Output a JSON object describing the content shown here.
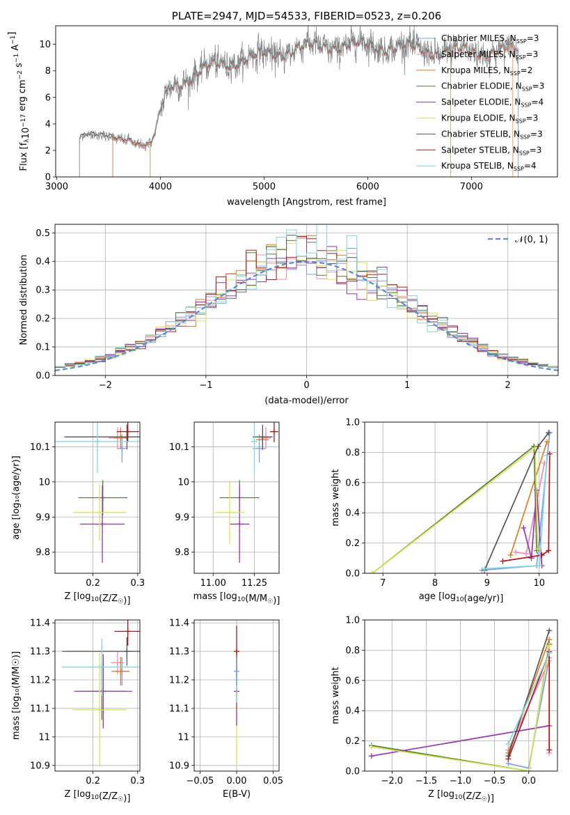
{
  "colors": {
    "chabrier_miles": "#7b9ee8",
    "salpeter_miles": "#f08ab0",
    "kroupa_miles": "#e07b22",
    "chabrier_elodie": "#4f7a44",
    "salpeter_elodie": "#9b30b0",
    "kroupa_elodie": "#d6e84c",
    "chabrier_stelib": "#555555",
    "salpeter_stelib": "#b01616",
    "kroupa_stelib": "#7fd6e0",
    "data_spectrum": "#808080",
    "normal_curve": "#5b8bd6"
  },
  "chart_data": [
    {
      "panel": "spectrum",
      "type": "line",
      "title": "PLATE=2947, MJD=54533, FIBERID=0523, z=0.206",
      "xlabel": "wavelength [Angstrom, rest frame]",
      "ylabel_parts": [
        "Flux [f",
        "λ",
        "10",
        "−17",
        " erg cm",
        "−2",
        " s",
        "−1",
        " A",
        "−1",
        "]"
      ],
      "xlim": [
        2990,
        7830
      ],
      "ylim": [
        0,
        11.4
      ],
      "xticks": [
        3000,
        4000,
        5000,
        6000,
        7000
      ],
      "yticks": [
        0,
        2,
        4,
        6,
        8,
        10
      ],
      "grid": false,
      "legend_position": "right",
      "legend": [
        {
          "label": "Chabrier MILES, N",
          "sub": "SSP",
          "suffix": "=3",
          "color_key": "chabrier_miles"
        },
        {
          "label": "Salpeter MILES, N",
          "sub": "SSP",
          "suffix": "=3",
          "color_key": "salpeter_miles"
        },
        {
          "label": "Kroupa MILES, N",
          "sub": "SSP",
          "suffix": "=2",
          "color_key": "kroupa_miles"
        },
        {
          "label": "Chabrier ELODIE, N",
          "sub": "SSP",
          "suffix": "=3",
          "color_key": "chabrier_elodie"
        },
        {
          "label": "Salpeter ELODIE, N",
          "sub": "SSP",
          "suffix": "=4",
          "color_key": "salpeter_elodie"
        },
        {
          "label": "Kroupa ELODIE, N",
          "sub": "SSP",
          "suffix": "=3",
          "color_key": "kroupa_elodie"
        },
        {
          "label": "Chabrier STELIB, N",
          "sub": "SSP",
          "suffix": "=3",
          "color_key": "chabrier_stelib"
        },
        {
          "label": "Salpeter STELIB, N",
          "sub": "SSP",
          "suffix": "=3",
          "color_key": "salpeter_stelib"
        },
        {
          "label": "Kroupa STELIB, N",
          "sub": "SSP",
          "suffix": "=4",
          "color_key": "kroupa_stelib"
        }
      ],
      "continuum": [
        [
          3220,
          3.1
        ],
        [
          3300,
          3.4
        ],
        [
          3450,
          3.0
        ],
        [
          3600,
          2.8
        ],
        [
          3700,
          2.9
        ],
        [
          3800,
          2.5
        ],
        [
          3900,
          2.4
        ],
        [
          3950,
          3.3
        ],
        [
          4000,
          5.0
        ],
        [
          4100,
          6.9
        ],
        [
          4300,
          7.6
        ],
        [
          4500,
          8.3
        ],
        [
          4700,
          8.8
        ],
        [
          4900,
          9.0
        ],
        [
          5100,
          9.3
        ],
        [
          5300,
          9.7
        ],
        [
          5500,
          9.8
        ],
        [
          5700,
          10.0
        ],
        [
          5900,
          9.9
        ],
        [
          6100,
          9.9
        ],
        [
          6300,
          9.8
        ],
        [
          6500,
          9.6
        ],
        [
          6700,
          9.5
        ],
        [
          6900,
          9.4
        ],
        [
          7100,
          9.5
        ],
        [
          7300,
          9.5
        ],
        [
          7450,
          9.5
        ]
      ],
      "model_ranges": [
        {
          "color_key": "chabrier_miles",
          "x": [
            3540,
            7450
          ]
        },
        {
          "color_key": "salpeter_miles",
          "x": [
            3540,
            7450
          ]
        },
        {
          "color_key": "kroupa_miles",
          "x": [
            3540,
            7400
          ]
        },
        {
          "color_key": "chabrier_elodie",
          "x": [
            3900,
            6800
          ]
        },
        {
          "color_key": "salpeter_elodie",
          "x": [
            3900,
            6800
          ]
        },
        {
          "color_key": "kroupa_elodie",
          "x": [
            3900,
            6800
          ]
        },
        {
          "color_key": "chabrier_stelib",
          "x": [
            3220,
            7450
          ]
        },
        {
          "color_key": "salpeter_stelib",
          "x": [
            3220,
            7450
          ]
        },
        {
          "color_key": "kroupa_stelib",
          "x": [
            3220,
            7450
          ]
        }
      ]
    },
    {
      "panel": "residuals",
      "type": "line",
      "xlabel": "(data-model)/error",
      "ylabel": "Normed distribution",
      "xlim": [
        -2.5,
        2.5
      ],
      "ylim": [
        0,
        0.53
      ],
      "xticks": [
        -2,
        -1,
        0,
        1,
        2
      ],
      "xtick_labels": [
        "−2",
        "−1",
        "0",
        "1",
        "2"
      ],
      "yticks": [
        0.0,
        0.1,
        0.2,
        0.3,
        0.4,
        0.5
      ],
      "ytick_labels": [
        "0.0",
        "0.1",
        "0.2",
        "0.3",
        "0.4",
        "0.5"
      ],
      "grid": true,
      "legend_position": "top-right",
      "legend_label": "𝒩(0, 1)",
      "bin_width": 0.1,
      "bin_start": -2.5
    },
    {
      "panel": "age_vs_Z",
      "type": "scatter",
      "xlabel_prefix": "Z [log",
      "xlabel_sub": "10",
      "xlabel_suffix": "(Z/Z",
      "xlabel_sun": "☉",
      "xlabel_end": ")]",
      "ylabel": "age  [log₁₀(age/yr)]",
      "xlim": [
        0.115,
        0.305
      ],
      "ylim": [
        9.74,
        10.17
      ],
      "xticks": [
        0.2,
        0.3
      ],
      "yticks": [
        9.8,
        9.9,
        10.0,
        10.1
      ],
      "grid": true,
      "points": [
        {
          "color_key": "chabrier_miles",
          "x": 0.265,
          "y": 10.095,
          "ex": 0.012,
          "ey": 0.04
        },
        {
          "color_key": "salpeter_miles",
          "x": 0.255,
          "y": 10.125,
          "ex": 0.02,
          "ey": 0.03
        },
        {
          "color_key": "kroupa_miles",
          "x": 0.262,
          "y": 10.125,
          "ex": 0.015,
          "ey": 0.03
        },
        {
          "color_key": "chabrier_elodie",
          "x": 0.222,
          "y": 9.955,
          "ex": 0.055,
          "ey": 0.05
        },
        {
          "color_key": "salpeter_elodie",
          "x": 0.221,
          "y": 9.88,
          "ex": 0.05,
          "ey": 0.11
        },
        {
          "color_key": "kroupa_elodie",
          "x": 0.215,
          "y": 9.913,
          "ex": 0.06,
          "ey": 0.08
        },
        {
          "color_key": "chabrier_stelib",
          "x": 0.276,
          "y": 10.128,
          "ex": 0.14,
          "ey": 0.035
        },
        {
          "color_key": "salpeter_stelib",
          "x": 0.278,
          "y": 10.143,
          "ex": 0.025,
          "ey": 0.03
        },
        {
          "color_key": "kroupa_stelib",
          "x": 0.21,
          "y": 10.115,
          "ex": 0.095,
          "ey": 0.09
        }
      ]
    },
    {
      "panel": "age_vs_mass",
      "type": "scatter",
      "xlabel_prefix": "mass [log",
      "xlabel_sub": "10",
      "xlabel_suffix": "(M/M",
      "xlabel_sun": "☉",
      "xlabel_end": ")]",
      "xlim": [
        10.885,
        11.4
      ],
      "ylim": [
        9.74,
        10.17
      ],
      "xticks": [
        11.0,
        11.25
      ],
      "xtick_labels": [
        "11.00",
        "11.25"
      ],
      "yticks": [
        9.8,
        9.9,
        10.0,
        10.1
      ],
      "grid": true,
      "points": [
        {
          "color_key": "chabrier_miles",
          "x": 11.28,
          "y": 10.095,
          "ex": 0.04,
          "ey": 0.04
        },
        {
          "color_key": "salpeter_miles",
          "x": 11.32,
          "y": 10.125,
          "ex": 0.03,
          "ey": 0.03
        },
        {
          "color_key": "kroupa_miles",
          "x": 11.3,
          "y": 10.12,
          "ex": 0.04,
          "ey": 0.03
        },
        {
          "color_key": "chabrier_elodie",
          "x": 11.16,
          "y": 9.955,
          "ex": 0.12,
          "ey": 0.05
        },
        {
          "color_key": "salpeter_elodie",
          "x": 11.16,
          "y": 9.88,
          "ex": 0.06,
          "ey": 0.11
        },
        {
          "color_key": "kroupa_elodie",
          "x": 11.1,
          "y": 9.913,
          "ex": 0.09,
          "ey": 0.09
        },
        {
          "color_key": "chabrier_stelib",
          "x": 11.3,
          "y": 10.128,
          "ex": 0.06,
          "ey": 0.035
        },
        {
          "color_key": "salpeter_stelib",
          "x": 11.37,
          "y": 10.143,
          "ex": 0.025,
          "ey": 0.03
        },
        {
          "color_key": "kroupa_stelib",
          "x": 11.25,
          "y": 10.115,
          "ex": 0.02,
          "ey": 0.09
        }
      ]
    },
    {
      "panel": "weight_vs_age",
      "type": "line",
      "xlabel_prefix": "age  [log",
      "xlabel_sub": "10",
      "xlabel_suffix": "(age/yr)]",
      "ylabel": "mass weight",
      "xlim": [
        6.65,
        10.35
      ],
      "ylim": [
        0,
        1.0
      ],
      "xticks": [
        7,
        8,
        9,
        10
      ],
      "yticks": [
        0.0,
        0.2,
        0.4,
        0.6,
        0.8,
        1.0
      ],
      "ytick_labels": [
        "0.0",
        "0.2",
        "0.4",
        "0.6",
        "0.8",
        "1.0"
      ],
      "grid": true,
      "series": [
        {
          "color_key": "chabrier_miles",
          "x": [
            8.9,
            9.95,
            10.2
          ],
          "y": [
            0.02,
            0.05,
            0.93
          ]
        },
        {
          "color_key": "salpeter_miles",
          "x": [
            9.55,
            9.75,
            10.1
          ],
          "y": [
            0.14,
            0.13,
            0.73
          ]
        },
        {
          "color_key": "kroupa_miles",
          "x": [
            9.45,
            10.15
          ],
          "y": [
            0.12,
            0.87
          ]
        },
        {
          "color_key": "chabrier_elodie",
          "x": [
            6.8,
            9.9,
            9.95
          ],
          "y": [
            0.0,
            0.84,
            0.15
          ]
        },
        {
          "color_key": "salpeter_elodie",
          "x": [
            9.7,
            9.85,
            9.95,
            10.05
          ],
          "y": [
            0.3,
            0.1,
            0.55,
            0.05
          ]
        },
        {
          "color_key": "kroupa_elodie",
          "x": [
            6.8,
            9.92,
            9.97
          ],
          "y": [
            0.0,
            0.83,
            0.16
          ]
        },
        {
          "color_key": "chabrier_stelib",
          "x": [
            8.95,
            9.98,
            10.18
          ],
          "y": [
            0.02,
            0.84,
            0.93
          ]
        },
        {
          "color_key": "salpeter_stelib",
          "x": [
            9.3,
            10.05,
            10.18,
            10.2
          ],
          "y": [
            0.08,
            0.12,
            0.15,
            0.79
          ]
        },
        {
          "color_key": "kroupa_stelib",
          "x": [
            8.95,
            10.0,
            10.15
          ],
          "y": [
            0.03,
            0.05,
            0.78
          ]
        }
      ]
    },
    {
      "panel": "mass_vs_Z",
      "type": "scatter",
      "xlabel_prefix": "Z [log",
      "xlabel_sub": "10",
      "xlabel_suffix": "(Z/Z",
      "xlabel_sun": "☉",
      "xlabel_end": ")]",
      "ylabel": "mass [log₁₀(M/M☉)]",
      "xlim": [
        0.115,
        0.305
      ],
      "ylim": [
        10.88,
        11.41
      ],
      "xticks": [
        0.2,
        0.3
      ],
      "yticks": [
        10.9,
        11.0,
        11.1,
        11.2,
        11.3,
        11.4
      ],
      "grid": true,
      "points": [
        {
          "color_key": "chabrier_miles",
          "x": 0.265,
          "y": 11.23,
          "ex": 0.012,
          "ey": 0.05
        },
        {
          "color_key": "salpeter_miles",
          "x": 0.255,
          "y": 11.26,
          "ex": 0.015,
          "ey": 0.04
        },
        {
          "color_key": "kroupa_miles",
          "x": 0.262,
          "y": 11.23,
          "ex": 0.02,
          "ey": 0.05
        },
        {
          "color_key": "chabrier_elodie",
          "x": 0.22,
          "y": 11.16,
          "ex": 0.05,
          "ey": 0.1
        },
        {
          "color_key": "salpeter_elodie",
          "x": 0.223,
          "y": 11.16,
          "ex": 0.065,
          "ey": 0.13
        },
        {
          "color_key": "kroupa_elodie",
          "x": 0.215,
          "y": 11.095,
          "ex": 0.06,
          "ey": 0.2
        },
        {
          "color_key": "chabrier_stelib",
          "x": 0.276,
          "y": 11.3,
          "ex": 0.145,
          "ey": 0.05
        },
        {
          "color_key": "salpeter_stelib",
          "x": 0.278,
          "y": 11.37,
          "ex": 0.03,
          "ey": 0.05
        },
        {
          "color_key": "kroupa_stelib",
          "x": 0.22,
          "y": 11.245,
          "ex": 0.09,
          "ey": 0.1
        }
      ]
    },
    {
      "panel": "mass_vs_ebv",
      "type": "scatter",
      "xlabel": "E(B-V)",
      "xlim": [
        -0.058,
        0.058
      ],
      "ylim": [
        10.88,
        11.41
      ],
      "xticks": [
        -0.05,
        0.0,
        0.05
      ],
      "xtick_labels": [
        "−0.05",
        "0.00",
        "0.05"
      ],
      "yticks": [
        10.9,
        11.0,
        11.1,
        11.2,
        11.3,
        11.4
      ],
      "grid": true,
      "points": [
        {
          "color_key": "kroupa_elodie",
          "x": 0.0,
          "y": 11.1,
          "ey": 0.2
        },
        {
          "color_key": "salpeter_elodie",
          "x": 0.0,
          "y": 11.16,
          "ey": 0.12
        },
        {
          "color_key": "salpeter_stelib",
          "x": 0.0,
          "y": 11.3,
          "ey": 0.09
        },
        {
          "color_key": "kroupa_stelib",
          "x": 0.0,
          "y": 11.2,
          "ey": 0.08
        },
        {
          "color_key": "chabrier_miles",
          "x": 0.0,
          "y": 11.23,
          "ey": 0.05
        }
      ]
    },
    {
      "panel": "weight_vs_Z",
      "type": "line",
      "xlabel_prefix": "Z [log",
      "xlabel_sub": "10",
      "xlabel_suffix": "(Z/Z",
      "xlabel_sun": "☉",
      "xlabel_end": ")]",
      "ylabel": "mass weight",
      "xlim": [
        -2.4,
        0.42
      ],
      "ylim": [
        0,
        1.0
      ],
      "xticks": [
        -2.0,
        -1.5,
        -1.0,
        -0.5,
        0.0
      ],
      "xtick_labels": [
        "−2.0",
        "−1.5",
        "−1.0",
        "−0.5",
        "0.0"
      ],
      "yticks": [
        0.0,
        0.2,
        0.4,
        0.6,
        0.8,
        1.0
      ],
      "ytick_labels": [
        "0.0",
        "0.2",
        "0.4",
        "0.6",
        "0.8",
        "1.0"
      ],
      "grid": true,
      "series": [
        {
          "color_key": "chabrier_miles",
          "x": [
            -0.3,
            0.0,
            0.3
          ],
          "y": [
            0.05,
            0.02,
            0.75
          ]
        },
        {
          "color_key": "salpeter_miles",
          "x": [
            -0.3,
            0.3,
            0.3
          ],
          "y": [
            0.14,
            0.73,
            0.12
          ]
        },
        {
          "color_key": "kroupa_miles",
          "x": [
            -0.3,
            0.3
          ],
          "y": [
            0.12,
            0.87
          ]
        },
        {
          "color_key": "chabrier_elodie",
          "x": [
            -2.3,
            0.0,
            0.3
          ],
          "y": [
            0.17,
            0.0,
            0.84
          ]
        },
        {
          "color_key": "salpeter_elodie",
          "x": [
            -2.3,
            0.3
          ],
          "y": [
            0.1,
            0.3
          ]
        },
        {
          "color_key": "kroupa_elodie",
          "x": [
            -2.3,
            0.0,
            0.3
          ],
          "y": [
            0.16,
            0.0,
            0.83
          ]
        },
        {
          "color_key": "chabrier_stelib",
          "x": [
            -0.3,
            0.3
          ],
          "y": [
            0.1,
            0.93
          ]
        },
        {
          "color_key": "salpeter_stelib",
          "x": [
            -0.3,
            0.3,
            0.3
          ],
          "y": [
            0.08,
            0.79,
            0.14
          ]
        },
        {
          "color_key": "kroupa_stelib",
          "x": [
            -0.3,
            0.3
          ],
          "y": [
            0.18,
            0.78
          ]
        }
      ]
    }
  ]
}
